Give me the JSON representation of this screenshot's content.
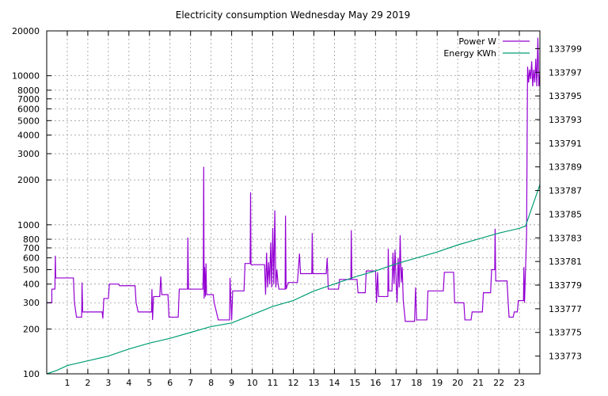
{
  "chart_data": {
    "type": "line",
    "title": "Electricity consumption Wednesday May 29 2019",
    "xlabel": "",
    "ylabel": "",
    "y2label": "",
    "grid": true,
    "legend_position": "top-right",
    "x_range": [
      0,
      24
    ],
    "x_ticks": [
      1,
      2,
      3,
      4,
      5,
      6,
      7,
      8,
      9,
      10,
      11,
      12,
      13,
      14,
      15,
      16,
      17,
      18,
      19,
      20,
      21,
      22,
      23
    ],
    "y_scale": "log",
    "y_range": [
      100,
      20000
    ],
    "y_ticks": [
      100,
      200,
      300,
      400,
      500,
      600,
      700,
      800,
      1000,
      2000,
      3000,
      4000,
      5000,
      6000,
      7000,
      8000,
      10000,
      20000
    ],
    "y2_range": [
      133771.5,
      133800.5
    ],
    "y2_ticks": [
      133773,
      133775,
      133777,
      133779,
      133781,
      133783,
      133785,
      133787,
      133789,
      133791,
      133793,
      133795,
      133797,
      133799
    ],
    "series": [
      {
        "name": "Power W",
        "axis": "y",
        "color": "#9400d3",
        "points": [
          [
            0.0,
            300
          ],
          [
            0.25,
            300
          ],
          [
            0.25,
            370
          ],
          [
            0.4,
            370
          ],
          [
            0.42,
            620
          ],
          [
            0.44,
            440
          ],
          [
            1.3,
            440
          ],
          [
            1.35,
            300
          ],
          [
            1.45,
            240
          ],
          [
            1.7,
            240
          ],
          [
            1.72,
            410
          ],
          [
            1.75,
            260
          ],
          [
            2.7,
            260
          ],
          [
            2.73,
            235
          ],
          [
            2.78,
            320
          ],
          [
            3.0,
            320
          ],
          [
            3.05,
            400
          ],
          [
            3.5,
            400
          ],
          [
            3.55,
            390
          ],
          [
            4.3,
            390
          ],
          [
            4.35,
            300
          ],
          [
            4.45,
            260
          ],
          [
            5.1,
            260
          ],
          [
            5.12,
            370
          ],
          [
            5.15,
            230
          ],
          [
            5.2,
            330
          ],
          [
            5.5,
            330
          ],
          [
            5.55,
            450
          ],
          [
            5.6,
            340
          ],
          [
            5.9,
            340
          ],
          [
            5.95,
            240
          ],
          [
            6.4,
            240
          ],
          [
            6.45,
            370
          ],
          [
            6.85,
            370
          ],
          [
            6.87,
            820
          ],
          [
            6.9,
            370
          ],
          [
            7.6,
            370
          ],
          [
            7.62,
            490
          ],
          [
            7.64,
            2450
          ],
          [
            7.66,
            320
          ],
          [
            7.68,
            520
          ],
          [
            7.72,
            330
          ],
          [
            7.75,
            550
          ],
          [
            7.78,
            340
          ],
          [
            8.1,
            340
          ],
          [
            8.15,
            300
          ],
          [
            8.35,
            230
          ],
          [
            8.9,
            230
          ],
          [
            8.92,
            440
          ],
          [
            9.0,
            230
          ],
          [
            9.05,
            360
          ],
          [
            9.6,
            360
          ],
          [
            9.65,
            550
          ],
          [
            9.9,
            550
          ],
          [
            9.92,
            1650
          ],
          [
            9.94,
            540
          ],
          [
            10.6,
            540
          ],
          [
            10.65,
            340
          ],
          [
            10.7,
            650
          ],
          [
            10.75,
            380
          ],
          [
            10.8,
            560
          ],
          [
            10.85,
            400
          ],
          [
            10.9,
            760
          ],
          [
            10.95,
            380
          ],
          [
            11.0,
            950
          ],
          [
            11.05,
            400
          ],
          [
            11.1,
            1250
          ],
          [
            11.15,
            380
          ],
          [
            11.2,
            500
          ],
          [
            11.25,
            410
          ],
          [
            11.3,
            370
          ],
          [
            11.6,
            370
          ],
          [
            11.62,
            1150
          ],
          [
            11.65,
            370
          ],
          [
            11.75,
            410
          ],
          [
            12.2,
            410
          ],
          [
            12.3,
            640
          ],
          [
            12.35,
            470
          ],
          [
            12.9,
            470
          ],
          [
            12.92,
            880
          ],
          [
            12.95,
            470
          ],
          [
            13.6,
            470
          ],
          [
            13.65,
            600
          ],
          [
            13.7,
            370
          ],
          [
            14.2,
            370
          ],
          [
            14.25,
            430
          ],
          [
            14.8,
            430
          ],
          [
            14.82,
            920
          ],
          [
            14.85,
            430
          ],
          [
            15.1,
            430
          ],
          [
            15.15,
            350
          ],
          [
            15.5,
            350
          ],
          [
            15.55,
            490
          ],
          [
            16.0,
            490
          ],
          [
            16.05,
            300
          ],
          [
            16.1,
            480
          ],
          [
            16.15,
            330
          ],
          [
            16.6,
            330
          ],
          [
            16.62,
            690
          ],
          [
            16.65,
            360
          ],
          [
            16.8,
            360
          ],
          [
            16.85,
            650
          ],
          [
            16.9,
            400
          ],
          [
            16.95,
            680
          ],
          [
            17.0,
            430
          ],
          [
            17.05,
            300
          ],
          [
            17.1,
            600
          ],
          [
            17.15,
            380
          ],
          [
            17.2,
            850
          ],
          [
            17.25,
            410
          ],
          [
            17.3,
            520
          ],
          [
            17.35,
            310
          ],
          [
            17.45,
            225
          ],
          [
            17.9,
            225
          ],
          [
            17.95,
            380
          ],
          [
            18.0,
            230
          ],
          [
            18.5,
            230
          ],
          [
            18.55,
            360
          ],
          [
            19.3,
            360
          ],
          [
            19.35,
            480
          ],
          [
            19.8,
            480
          ],
          [
            19.85,
            300
          ],
          [
            20.3,
            300
          ],
          [
            20.35,
            230
          ],
          [
            20.65,
            230
          ],
          [
            20.7,
            260
          ],
          [
            21.2,
            260
          ],
          [
            21.25,
            350
          ],
          [
            21.6,
            350
          ],
          [
            21.65,
            500
          ],
          [
            21.8,
            500
          ],
          [
            21.82,
            940
          ],
          [
            21.85,
            420
          ],
          [
            22.4,
            420
          ],
          [
            22.45,
            310
          ],
          [
            22.5,
            240
          ],
          [
            22.7,
            240
          ],
          [
            22.75,
            260
          ],
          [
            22.9,
            260
          ],
          [
            22.95,
            310
          ],
          [
            23.2,
            310
          ],
          [
            23.22,
            520
          ],
          [
            23.25,
            300
          ],
          [
            23.3,
            500
          ],
          [
            23.35,
            850
          ],
          [
            23.4,
            11500
          ],
          [
            23.45,
            9000
          ],
          [
            23.5,
            11000
          ],
          [
            23.55,
            9500
          ],
          [
            23.6,
            12500
          ],
          [
            23.65,
            8500
          ],
          [
            23.7,
            11000
          ],
          [
            23.75,
            9000
          ],
          [
            23.8,
            13000
          ],
          [
            23.85,
            8500
          ],
          [
            23.9,
            18000
          ],
          [
            23.95,
            8500
          ],
          [
            24.0,
            10500
          ]
        ]
      },
      {
        "name": "Energy KWh",
        "axis": "y2",
        "color": "#009e73",
        "points": [
          [
            0.0,
            133771.5
          ],
          [
            0.5,
            133771.8
          ],
          [
            1.0,
            133772.2
          ],
          [
            2.0,
            133772.6
          ],
          [
            3.0,
            133773.0
          ],
          [
            4.0,
            133773.6
          ],
          [
            5.0,
            133774.1
          ],
          [
            6.0,
            133774.5
          ],
          [
            7.0,
            133775.0
          ],
          [
            8.0,
            133775.5
          ],
          [
            9.0,
            133775.8
          ],
          [
            10.0,
            133776.5
          ],
          [
            11.0,
            133777.2
          ],
          [
            12.0,
            133777.7
          ],
          [
            13.0,
            133778.5
          ],
          [
            14.0,
            133779.1
          ],
          [
            15.0,
            133779.7
          ],
          [
            16.0,
            133780.2
          ],
          [
            17.0,
            133780.8
          ],
          [
            18.0,
            133781.3
          ],
          [
            19.0,
            133781.8
          ],
          [
            20.0,
            133782.4
          ],
          [
            21.0,
            133782.9
          ],
          [
            22.0,
            133783.4
          ],
          [
            23.0,
            133783.8
          ],
          [
            23.3,
            133784.0
          ],
          [
            23.5,
            133785.0
          ],
          [
            23.8,
            133786.5
          ],
          [
            24.0,
            133787.5
          ]
        ]
      }
    ]
  }
}
